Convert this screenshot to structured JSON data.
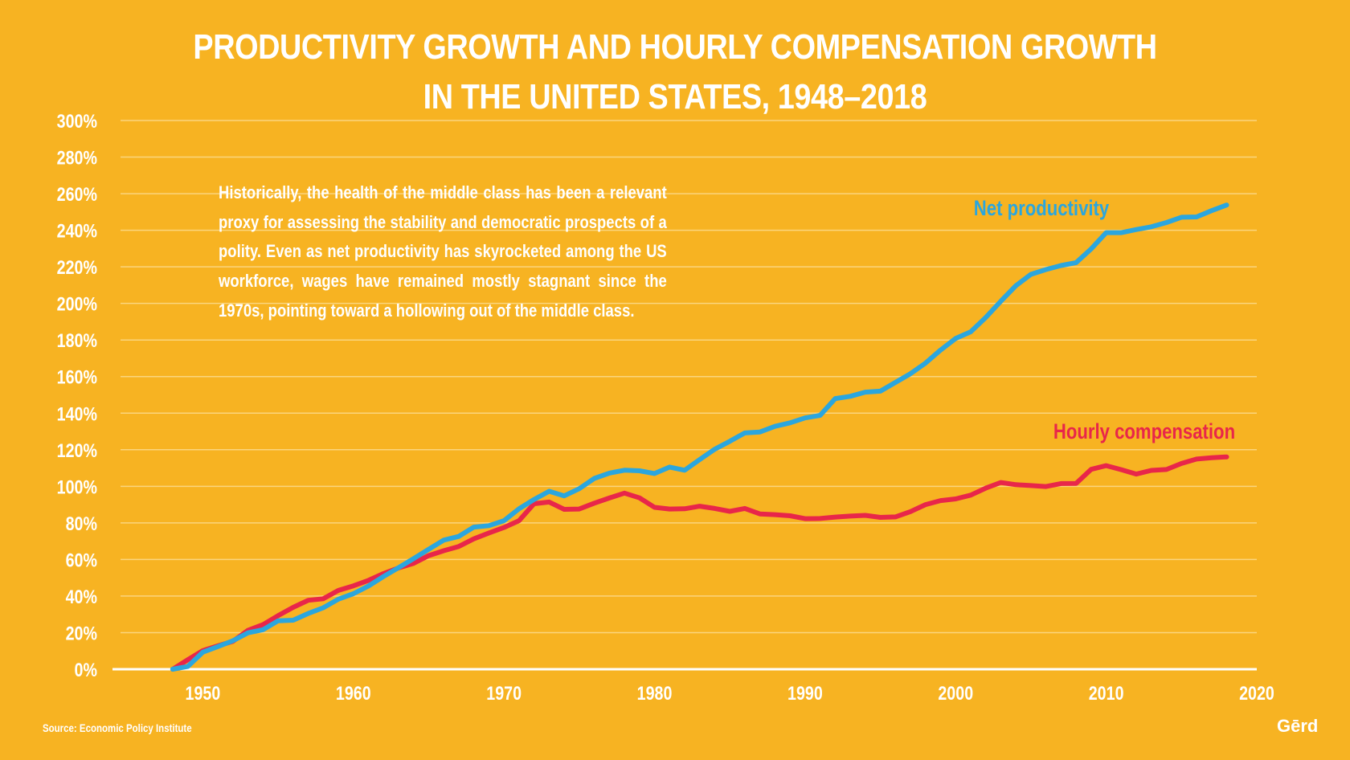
{
  "title_lines": [
    "PRODUCTIVITY GROWTH AND HOURLY COMPENSATION GROWTH",
    "IN THE UNITED STATES, 1948–2018"
  ],
  "note": "Historically, the health of the middle class has been a relevant proxy for assessing the stability and democratic prospects of a polity. Even as net productivity has skyrocketed among the US workforce, wages have remained mostly stagnant since the 1970s, pointing toward a hollowing out of the middle class.",
  "source": "Source: Economic Policy Institute",
  "logo": "Gērd",
  "colors": {
    "background": "#F7B322",
    "grid": "#FBD57E",
    "axis": "#FFFFFF",
    "text": "#FFFFFF",
    "productivity": "#2BA6DE",
    "compensation": "#E8264A"
  },
  "chart_data": {
    "type": "line",
    "title": "PRODUCTIVITY GROWTH AND HOURLY COMPENSATION GROWTH IN THE UNITED STATES, 1948–2018",
    "xlabel": "",
    "ylabel": "",
    "xlim": [
      1944,
      2020
    ],
    "ylim": [
      0,
      300
    ],
    "x_ticks": [
      1950,
      1960,
      1970,
      1980,
      1990,
      2000,
      2010,
      2020
    ],
    "y_ticks": [
      0,
      20,
      40,
      60,
      80,
      100,
      120,
      140,
      160,
      180,
      200,
      220,
      240,
      260,
      280,
      300
    ],
    "y_tick_suffix": "%",
    "grid": true,
    "legend": "direct labels at line ends",
    "series": [
      {
        "name": "Net productivity",
        "color": "#2BA6DE",
        "x": [
          1948,
          1949,
          1950,
          1951,
          1952,
          1953,
          1954,
          1955,
          1956,
          1957,
          1958,
          1959,
          1960,
          1961,
          1962,
          1963,
          1964,
          1965,
          1966,
          1967,
          1968,
          1969,
          1970,
          1971,
          1972,
          1973,
          1974,
          1975,
          1976,
          1977,
          1978,
          1979,
          1980,
          1981,
          1982,
          1983,
          1984,
          1985,
          1986,
          1987,
          1988,
          1989,
          1990,
          1991,
          1992,
          1993,
          1994,
          1995,
          1996,
          1997,
          1998,
          1999,
          2000,
          2001,
          2002,
          2003,
          2004,
          2005,
          2006,
          2007,
          2008,
          2009,
          2010,
          2011,
          2012,
          2013,
          2014,
          2015,
          2016,
          2017,
          2018
        ],
        "values": [
          0,
          1.5,
          9.3,
          12.4,
          15.6,
          19.9,
          21.6,
          26.5,
          26.8,
          30.5,
          33.6,
          38.3,
          41.3,
          45.5,
          50.7,
          55.5,
          60.5,
          65.6,
          70.6,
          72.6,
          77.7,
          78.5,
          81.2,
          87.7,
          92.8,
          97.3,
          94.8,
          98.7,
          104.3,
          107.2,
          108.8,
          108.5,
          107.0,
          110.5,
          108.8,
          114.6,
          120.3,
          124.6,
          129.2,
          129.7,
          132.8,
          134.7,
          137.4,
          138.8,
          148.0,
          149.2,
          151.5,
          152.0,
          156.8,
          161.6,
          167.4,
          174.5,
          180.9,
          184.5,
          192.3,
          201.2,
          209.7,
          215.9,
          218.5,
          220.7,
          222.3,
          229.8,
          238.7,
          238.7,
          240.4,
          241.9,
          244.2,
          247.1,
          247.3,
          250.7,
          253.8
        ]
      },
      {
        "name": "Hourly compensation",
        "color": "#E8264A",
        "x": [
          1948,
          1949,
          1950,
          1951,
          1952,
          1953,
          1954,
          1955,
          1956,
          1957,
          1958,
          1959,
          1960,
          1961,
          1962,
          1963,
          1964,
          1965,
          1966,
          1967,
          1968,
          1969,
          1970,
          1971,
          1972,
          1973,
          1974,
          1975,
          1976,
          1977,
          1978,
          1979,
          1980,
          1981,
          1982,
          1983,
          1984,
          1985,
          1986,
          1987,
          1988,
          1989,
          1990,
          1991,
          1992,
          1993,
          1994,
          1995,
          1996,
          1997,
          1998,
          1999,
          2000,
          2001,
          2002,
          2003,
          2004,
          2005,
          2006,
          2007,
          2008,
          2009,
          2010,
          2011,
          2012,
          2013,
          2014,
          2015,
          2016,
          2017,
          2018
        ],
        "values": [
          0,
          5.2,
          10.2,
          12.8,
          15.3,
          21.3,
          24.4,
          29.3,
          33.8,
          37.7,
          38.5,
          43.1,
          45.6,
          48.6,
          52.3,
          55.4,
          57.9,
          62.1,
          64.8,
          67.1,
          71.3,
          74.5,
          77.5,
          81.2,
          90.5,
          91.4,
          87.4,
          87.6,
          90.8,
          93.6,
          96.3,
          93.7,
          88.5,
          87.6,
          87.7,
          89.1,
          87.9,
          86.3,
          87.9,
          84.9,
          84.5,
          83.9,
          82.3,
          82.4,
          83.2,
          83.7,
          84.1,
          83.0,
          83.3,
          86.2,
          90.0,
          92.2,
          93.1,
          95.2,
          99.0,
          102.1,
          100.9,
          100.4,
          99.9,
          101.5,
          101.6,
          109.3,
          111.3,
          109.1,
          106.7,
          108.7,
          109.2,
          112.5,
          114.9,
          115.6,
          116.1
        ]
      }
    ]
  }
}
